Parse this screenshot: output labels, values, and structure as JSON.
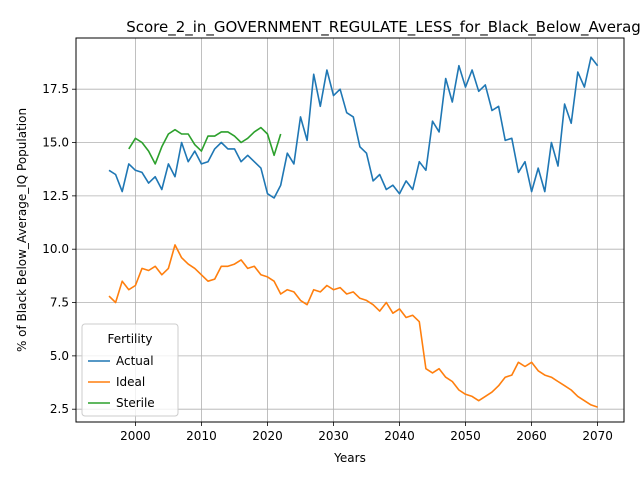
{
  "chart_data": {
    "type": "line",
    "title": "Score_2_in_GOVERNMENT_REGULATE_LESS_for_Black_Below_Average_IQ",
    "xlabel": "Years",
    "ylabel": "% of Black Below_Average_IQ Population",
    "xlim": [
      1991,
      2074
    ],
    "ylim": [
      1.9,
      19.9
    ],
    "xticks": [
      2000,
      2010,
      2020,
      2030,
      2040,
      2050,
      2060,
      2070
    ],
    "yticks": [
      2.5,
      5.0,
      7.5,
      10.0,
      12.5,
      15.0,
      17.5
    ],
    "ytick_labels": [
      "2.5",
      "5.0",
      "7.5",
      "10.0",
      "12.5",
      "15.0",
      "17.5"
    ],
    "grid": true,
    "legend": {
      "title": "Fertility",
      "position": "lower-left"
    },
    "series": [
      {
        "name": "Actual",
        "color": "#1f77b4",
        "x": [
          1996,
          1997,
          1998,
          1999,
          2000,
          2001,
          2002,
          2003,
          2004,
          2005,
          2006,
          2007,
          2008,
          2009,
          2010,
          2011,
          2012,
          2013,
          2014,
          2015,
          2016,
          2017,
          2018,
          2019,
          2020,
          2021,
          2022,
          2023,
          2024,
          2025,
          2026,
          2027,
          2028,
          2029,
          2030,
          2031,
          2032,
          2033,
          2034,
          2035,
          2036,
          2037,
          2038,
          2039,
          2040,
          2041,
          2042,
          2043,
          2044,
          2045,
          2046,
          2047,
          2048,
          2049,
          2050,
          2051,
          2052,
          2053,
          2054,
          2055,
          2056,
          2057,
          2058,
          2059,
          2060,
          2061,
          2062,
          2063,
          2064,
          2065,
          2066,
          2067,
          2068,
          2069,
          2070
        ],
        "y": [
          13.7,
          13.5,
          12.7,
          14.0,
          13.7,
          13.6,
          13.1,
          13.4,
          12.8,
          14.0,
          13.4,
          15.0,
          14.1,
          14.6,
          14.0,
          14.1,
          14.7,
          15.0,
          14.7,
          14.7,
          14.1,
          14.4,
          14.1,
          13.8,
          12.6,
          12.4,
          13.0,
          14.5,
          14.0,
          16.2,
          15.1,
          18.2,
          16.7,
          18.4,
          17.2,
          17.5,
          16.4,
          16.2,
          14.8,
          14.5,
          13.2,
          13.5,
          12.8,
          13.0,
          12.6,
          13.2,
          12.8,
          14.1,
          13.7,
          16.0,
          15.5,
          18.0,
          16.9,
          18.6,
          17.6,
          18.4,
          17.4,
          17.7,
          16.5,
          16.7,
          15.1,
          15.2,
          13.6,
          14.1,
          12.7,
          13.8,
          12.7,
          15.0,
          13.9,
          16.8,
          15.9,
          18.3,
          17.6,
          19.0,
          18.6
        ]
      },
      {
        "name": "Ideal",
        "color": "#ff7f0e",
        "x": [
          1996,
          1997,
          1998,
          1999,
          2000,
          2001,
          2002,
          2003,
          2004,
          2005,
          2006,
          2007,
          2008,
          2009,
          2010,
          2011,
          2012,
          2013,
          2014,
          2015,
          2016,
          2017,
          2018,
          2019,
          2020,
          2021,
          2022,
          2023,
          2024,
          2025,
          2026,
          2027,
          2028,
          2029,
          2030,
          2031,
          2032,
          2033,
          2034,
          2035,
          2036,
          2037,
          2038,
          2039,
          2040,
          2041,
          2042,
          2043,
          2044,
          2045,
          2046,
          2047,
          2048,
          2049,
          2050,
          2051,
          2052,
          2053,
          2054,
          2055,
          2056,
          2057,
          2058,
          2059,
          2060,
          2061,
          2062,
          2063,
          2064,
          2065,
          2066,
          2067,
          2068,
          2069,
          2070
        ],
        "y": [
          7.8,
          7.5,
          8.5,
          8.1,
          8.3,
          9.1,
          9.0,
          9.2,
          8.8,
          9.1,
          10.2,
          9.6,
          9.3,
          9.1,
          8.8,
          8.5,
          8.6,
          9.2,
          9.2,
          9.3,
          9.5,
          9.1,
          9.2,
          8.8,
          8.7,
          8.5,
          7.9,
          8.1,
          8.0,
          7.6,
          7.4,
          8.1,
          8.0,
          8.3,
          8.1,
          8.2,
          7.9,
          8.0,
          7.7,
          7.6,
          7.4,
          7.1,
          7.5,
          7.0,
          7.2,
          6.8,
          6.9,
          6.6,
          4.4,
          4.2,
          4.4,
          4.0,
          3.8,
          3.4,
          3.2,
          3.1,
          2.9,
          3.1,
          3.3,
          3.6,
          4.0,
          4.1,
          4.7,
          4.5,
          4.7,
          4.3,
          4.1,
          4.0,
          3.8,
          3.6,
          3.4,
          3.1,
          2.9,
          2.7,
          2.6
        ]
      },
      {
        "name": "Sterile",
        "color": "#2ca02c",
        "x": [
          1999,
          2000,
          2001,
          2002,
          2003,
          2004,
          2005,
          2006,
          2007,
          2008,
          2009,
          2010,
          2011,
          2012,
          2013,
          2014,
          2015,
          2016,
          2017,
          2018,
          2019,
          2020,
          2021,
          2022
        ],
        "y": [
          14.7,
          15.2,
          15.0,
          14.6,
          14.0,
          14.8,
          15.4,
          15.6,
          15.4,
          15.4,
          14.9,
          14.6,
          15.3,
          15.3,
          15.5,
          15.5,
          15.3,
          15.0,
          15.2,
          15.5,
          15.7,
          15.4,
          14.4,
          15.4
        ]
      }
    ]
  }
}
